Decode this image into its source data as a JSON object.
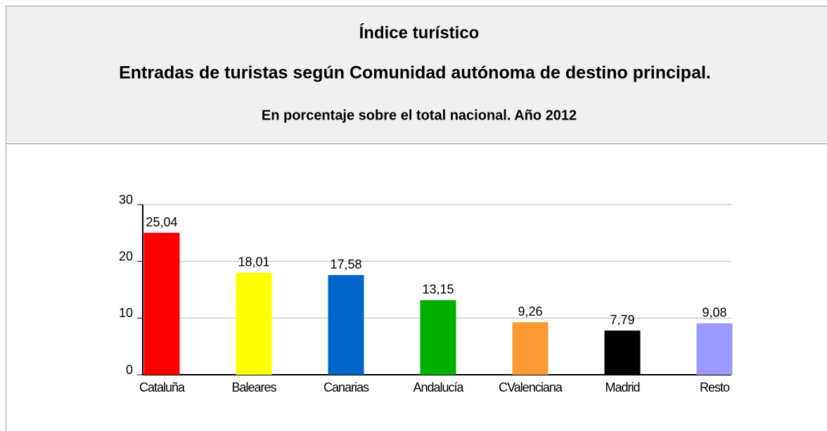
{
  "chart_data": {
    "type": "bar",
    "title": "Índice turístico",
    "subtitle": "Entradas de turistas según Comunidad autónoma de destino principal.",
    "caption": "En porcentaje sobre el total nacional. Año 2012",
    "categories": [
      "Cataluña",
      "Baleares",
      "Canarias",
      "Andalucía",
      "CValenciana",
      "Madrid",
      "Resto"
    ],
    "values": [
      25.04,
      18.01,
      17.58,
      13.15,
      9.26,
      7.79,
      9.08
    ],
    "value_labels": [
      "25,04",
      "18,01",
      "17,58",
      "13,15",
      "9,26",
      "7,79",
      "9,08"
    ],
    "colors": [
      "#ff0000",
      "#ffff00",
      "#0066cc",
      "#00b000",
      "#ff9933",
      "#000000",
      "#9999ff"
    ],
    "ylim": [
      0,
      30
    ],
    "yticks": [
      0,
      10,
      20,
      30
    ],
    "grid": true
  }
}
